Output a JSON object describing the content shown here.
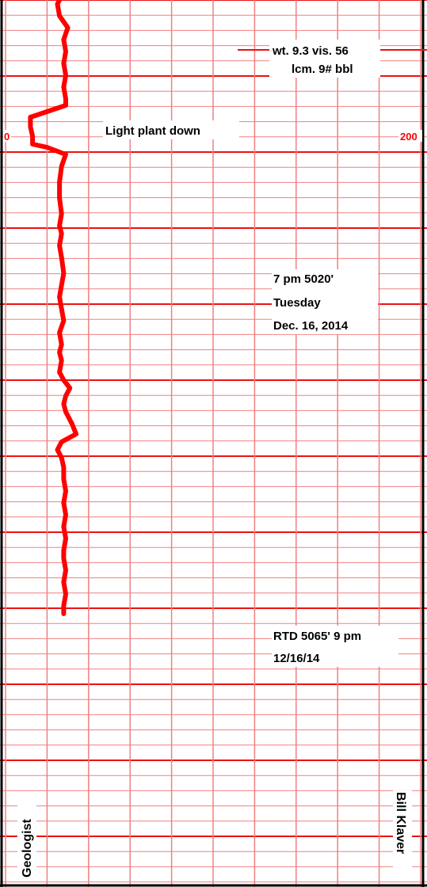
{
  "chart_data": {
    "type": "line",
    "title": "",
    "xlabel": "",
    "ylabel": "",
    "xlim": [
      0,
      200
    ],
    "x_tick_labels": [
      "0",
      "200"
    ],
    "series": [
      {
        "points": [
          [
            28,
            -10
          ],
          [
            25,
            5
          ],
          [
            26,
            20
          ],
          [
            30,
            35
          ],
          [
            28,
            50
          ],
          [
            29,
            65
          ],
          [
            28,
            80
          ],
          [
            29,
            95
          ],
          [
            28,
            110
          ],
          [
            29,
            125
          ],
          [
            29,
            133
          ],
          [
            12,
            148
          ],
          [
            12,
            160
          ],
          [
            13,
            172
          ],
          [
            13,
            182
          ],
          [
            20,
            186
          ],
          [
            29,
            195
          ],
          [
            27,
            210
          ],
          [
            26,
            230
          ],
          [
            26,
            250
          ],
          [
            27,
            270
          ],
          [
            26,
            285
          ],
          [
            27,
            295
          ],
          [
            26,
            310
          ],
          [
            27,
            325
          ],
          [
            28,
            345
          ],
          [
            27,
            360
          ],
          [
            26,
            375
          ],
          [
            27,
            390
          ],
          [
            28,
            405
          ],
          [
            26,
            420
          ],
          [
            27,
            435
          ],
          [
            26,
            445
          ],
          [
            27,
            455
          ],
          [
            26,
            470
          ],
          [
            28,
            480
          ],
          [
            31,
            490
          ],
          [
            29,
            500
          ],
          [
            28,
            510
          ],
          [
            29,
            520
          ],
          [
            32,
            535
          ],
          [
            34,
            548
          ],
          [
            27,
            558
          ],
          [
            25,
            568
          ],
          [
            27,
            578
          ],
          [
            28,
            590
          ],
          [
            28,
            605
          ],
          [
            29,
            620
          ],
          [
            28,
            635
          ],
          [
            29,
            650
          ],
          [
            28,
            665
          ],
          [
            29,
            680
          ],
          [
            28,
            695
          ],
          [
            28,
            705
          ],
          [
            29,
            720
          ],
          [
            28,
            735
          ],
          [
            29,
            750
          ],
          [
            28,
            765
          ],
          [
            28,
            775
          ]
        ]
      }
    ],
    "annotations": [
      {
        "lines": [
          "wt. 9.3  vis. 56",
          "lcm. 9# bbl"
        ]
      },
      {
        "lines": [
          "Light plant down"
        ]
      },
      {
        "lines": [
          "7 pm  5020'",
          "Tuesday",
          "Dec. 16, 2014"
        ]
      },
      {
        "lines": [
          "RTD  5065'  9 pm",
          "12/16/14"
        ]
      }
    ],
    "side_labels": {
      "left": "Geologist",
      "right": "Bill Klaver"
    },
    "grid": true,
    "colors": {
      "curve": "#ff0000",
      "grid_minor": "#f08080",
      "grid_major": "#ee1111",
      "grid_heavy": "#dd0000",
      "scale_text": "#ff0000"
    }
  }
}
